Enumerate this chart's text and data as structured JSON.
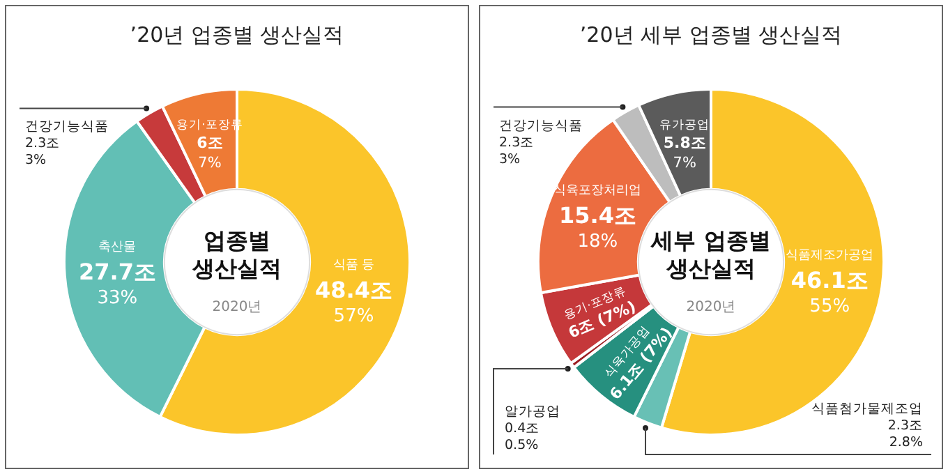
{
  "chart_data": [
    {
      "type": "donut",
      "title": "’20년 업종별 생산실적",
      "categories": [
        "식품 등",
        "축산물",
        "건강기능식품",
        "용기·포장류"
      ],
      "values": [
        48.4,
        27.7,
        2.3,
        6
      ],
      "colors": [
        "#fbc52a",
        "#62bfb5",
        "#c73a3b",
        "#ee7a35"
      ],
      "value_labels": [
        "48.4조\n57%",
        "27.7조\n33%",
        "2.3조\n3%",
        "6조\n7%"
      ],
      "annotations": [
        "업종별\n생산실적",
        "2020년"
      ]
    },
    {
      "type": "donut",
      "title": "’20년 세부 업종별 생산실적",
      "categories": [
        "식품제조가공업",
        "식품첨가물제조업",
        "식육가공업",
        "알가공업",
        "용기·포장류",
        "식육포장처리업",
        "건강기능식품",
        "유가공업"
      ],
      "values": [
        46.1,
        2.3,
        6.1,
        0.4,
        6,
        15.4,
        2.3,
        5.8
      ],
      "colors": [
        "#fbc52a",
        "#68c0b5",
        "#26907f",
        "#9c1e22",
        "#c5383a",
        "#ec6c40",
        "#bdbdbd",
        "#5b5b5b"
      ],
      "value_labels": [
        "46.1조\n55%",
        "2.3조\n2.8%",
        "6.1조 (7%)",
        "0.4조\n0.5%",
        "6조 (7%)",
        "15.4조\n18%",
        "2.3조\n3%",
        "5.8조\n7%"
      ],
      "annotations": [
        "세부 업종별\n생산실적",
        "2020년"
      ]
    }
  ]
}
